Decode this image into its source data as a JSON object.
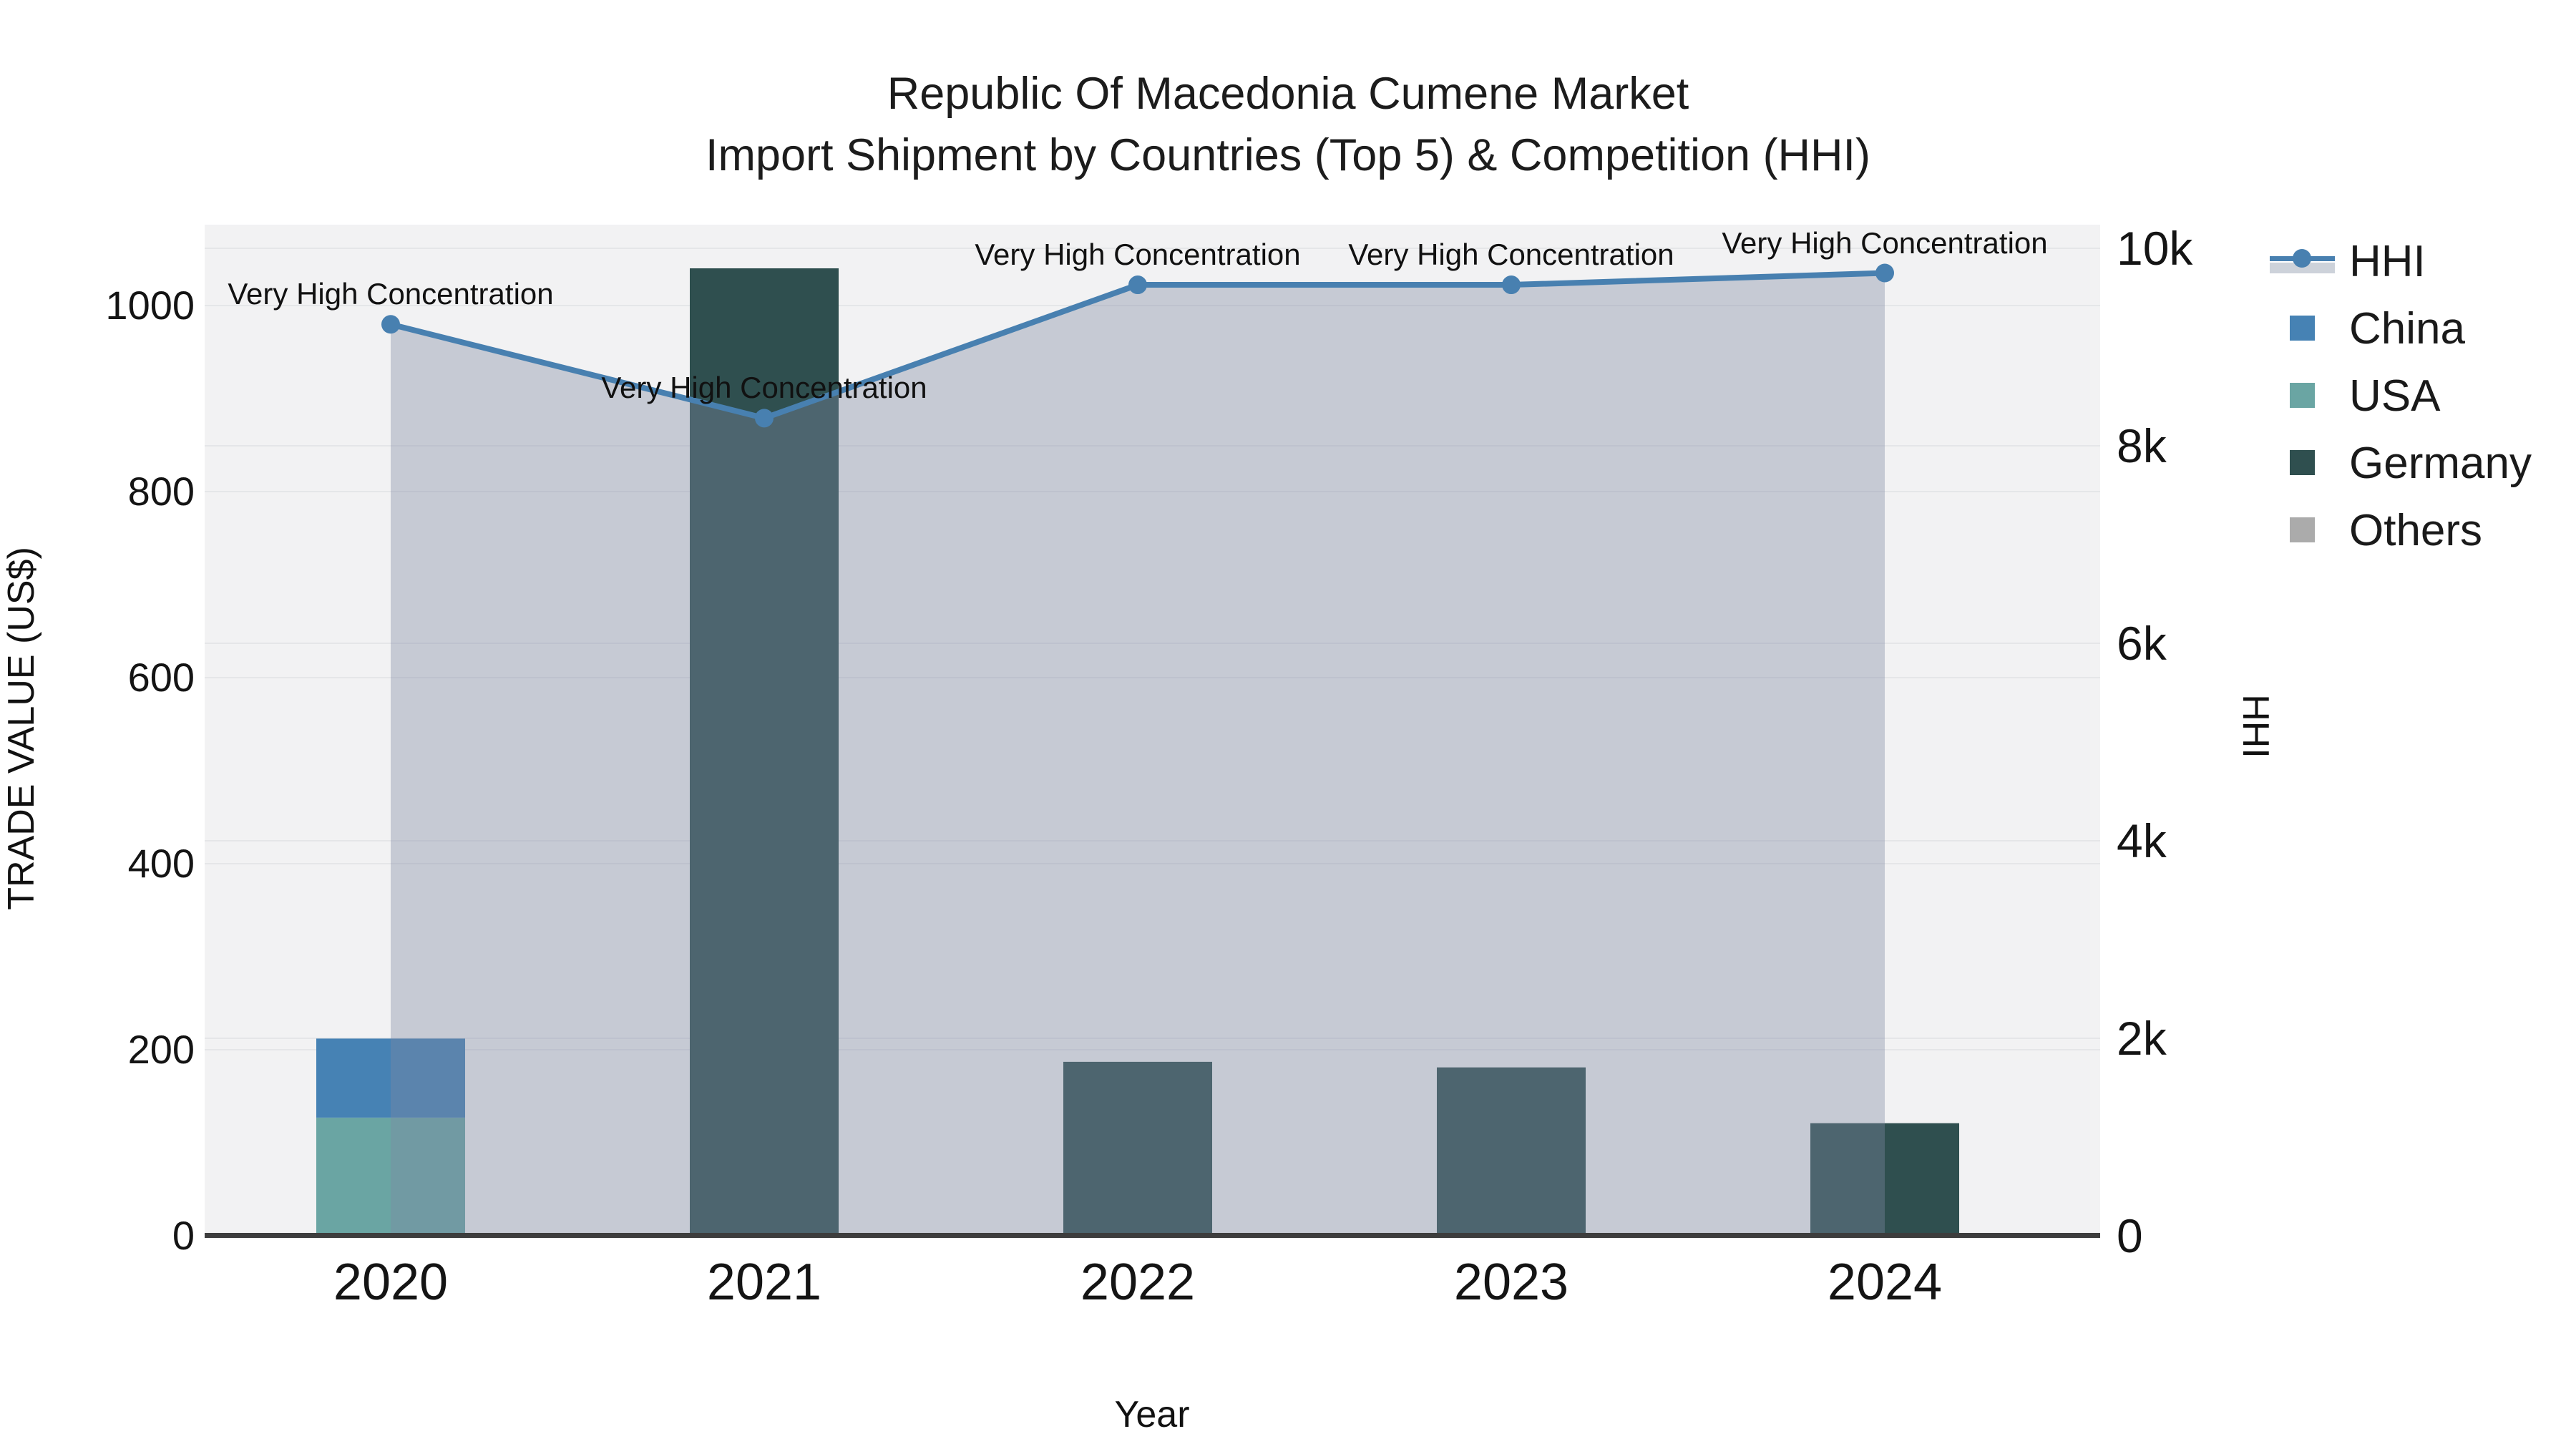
{
  "title": {
    "line1": "Republic Of Macedonia Cumene Market",
    "line2": "Import Shipment by Countries (Top 5) & Competition (HHI)"
  },
  "legend": {
    "items": [
      {
        "label": "HHI",
        "type": "line",
        "color": "#4880b0",
        "fill": "#cdd2da"
      },
      {
        "label": "China",
        "type": "square",
        "color": "#4682b4"
      },
      {
        "label": "USA",
        "type": "square",
        "color": "#6aa5a3"
      },
      {
        "label": "Germany",
        "type": "square",
        "color": "#2f4f4f"
      },
      {
        "label": "Others",
        "type": "square",
        "color": "#ababab"
      }
    ]
  },
  "chart_data": {
    "type": "composite-stacked-bar-and-line",
    "title": "Republic Of Macedonia Cumene Market Import Shipment by Countries (Top 5) & Competition (HHI)",
    "xlabel": "Year",
    "ylabel_left": "TRADE VALUE (US$)",
    "ylabel_right": "HHI",
    "categories": [
      "2020",
      "2021",
      "2022",
      "2023",
      "2024"
    ],
    "bar_series": [
      {
        "name": "USA",
        "color": "#6aa5a3",
        "values": [
          127,
          0,
          0,
          0,
          0
        ]
      },
      {
        "name": "China",
        "color": "#4682b4",
        "values": [
          85,
          0,
          0,
          0,
          0
        ]
      },
      {
        "name": "Germany",
        "color": "#2f4f4f",
        "values": [
          0,
          1040,
          187,
          181,
          121
        ]
      },
      {
        "name": "Others",
        "color": "#ababab",
        "values": [
          0,
          0,
          0,
          0,
          0
        ]
      }
    ],
    "line_series": {
      "name": "HHI",
      "axis": "right",
      "color": "#4880b0",
      "area_fill": "rgba(125,138,162,0.38)",
      "values": [
        9230,
        8280,
        9630,
        9630,
        9750
      ]
    },
    "annotations": [
      {
        "text": "Very High Concentration",
        "point_index": 0
      },
      {
        "text": "Very High Concentration",
        "point_index": 1
      },
      {
        "text": "Very High Concentration",
        "point_index": 2
      },
      {
        "text": "Very High Concentration",
        "point_index": 3
      },
      {
        "text": "Very High Concentration",
        "point_index": 4
      }
    ],
    "y_left_ticks": [
      {
        "label": "1000",
        "value": 1000
      },
      {
        "label": "800",
        "value": 800
      },
      {
        "label": "600",
        "value": 600
      },
      {
        "label": "400",
        "value": 400
      },
      {
        "label": "200",
        "value": 200
      },
      {
        "label": "0",
        "value": 0
      }
    ],
    "y_right_ticks": [
      {
        "label": "10k",
        "value": 10000
      },
      {
        "label": "8k",
        "value": 8000
      },
      {
        "label": "6k",
        "value": 6000
      },
      {
        "label": "4k",
        "value": 4000
      },
      {
        "label": "2k",
        "value": 2000
      },
      {
        "label": "0",
        "value": 0
      }
    ],
    "axis_ranges": {
      "left": [
        0,
        1087
      ],
      "right": [
        0,
        10240
      ]
    },
    "grid": true,
    "legend_position": "right"
  },
  "colors": {
    "plot_background": "#f2f2f3",
    "gridline": "#e5e6e8",
    "axis_line": "#3d3d3d",
    "text": "#141414"
  }
}
